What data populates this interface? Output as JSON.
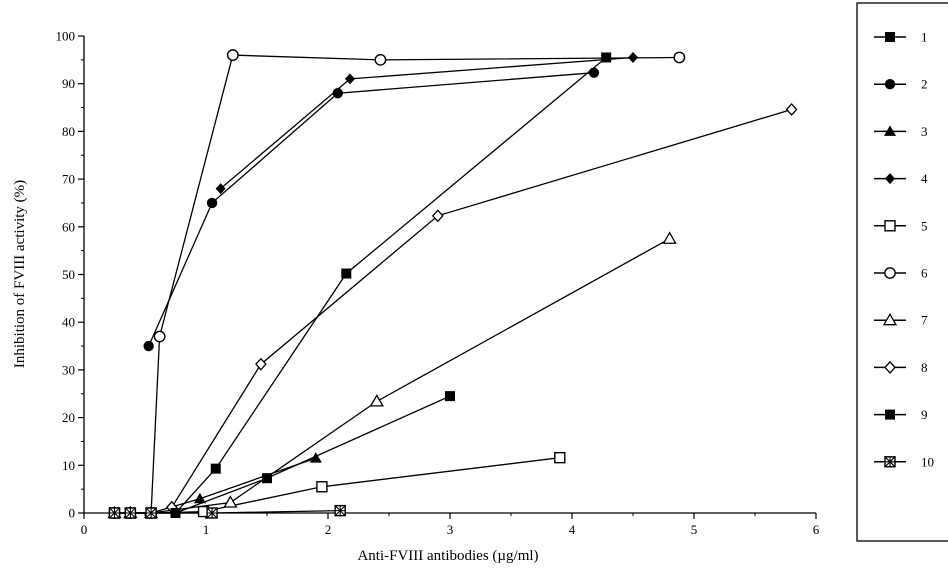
{
  "chart_data": {
    "type": "line",
    "title": "",
    "xlabel": "Anti-FVIII antibodies (µg/ml)",
    "ylabel": "Inhibition of FVIII activity (%)",
    "xlim": [
      0,
      6
    ],
    "ylim": [
      0,
      100
    ],
    "x_ticks": [
      "0",
      "1",
      "2",
      "3",
      "4",
      "5",
      "6"
    ],
    "y_ticks": [
      "0",
      "10",
      "20",
      "30",
      "40",
      "50",
      "60",
      "70",
      "80",
      "90",
      "100"
    ],
    "grid": false,
    "legend_position": "right",
    "series": [
      {
        "name": "1",
        "marker": "square-filled",
        "points": [
          [
            0.25,
            0
          ],
          [
            0.38,
            0
          ],
          [
            0.55,
            0
          ],
          [
            0.75,
            0
          ],
          [
            1.08,
            9.3
          ],
          [
            2.15,
            50.2
          ],
          [
            4.28,
            95.5
          ]
        ]
      },
      {
        "name": "2",
        "marker": "circle-filled",
        "points": [
          [
            0.53,
            35
          ],
          [
            1.05,
            65
          ],
          [
            2.08,
            88
          ],
          [
            4.18,
            92.3
          ]
        ]
      },
      {
        "name": "3",
        "marker": "triangle-filled",
        "points": [
          [
            0.25,
            0
          ],
          [
            0.38,
            0
          ],
          [
            0.55,
            0
          ],
          [
            0.95,
            3
          ],
          [
            1.9,
            11.5
          ]
        ]
      },
      {
        "name": "4",
        "marker": "diamond-filled",
        "points": [
          [
            1.12,
            68
          ],
          [
            2.18,
            91
          ],
          [
            4.5,
            95.5
          ]
        ]
      },
      {
        "name": "5",
        "marker": "square-open",
        "points": [
          [
            0.25,
            0
          ],
          [
            0.38,
            0
          ],
          [
            0.55,
            0
          ],
          [
            0.98,
            0.3
          ],
          [
            1.95,
            5.5
          ],
          [
            3.9,
            11.6
          ]
        ]
      },
      {
        "name": "6",
        "marker": "circle-open",
        "points": [
          [
            0.25,
            0
          ],
          [
            0.38,
            0
          ],
          [
            0.55,
            0
          ],
          [
            0.62,
            37
          ],
          [
            1.22,
            96
          ],
          [
            2.43,
            95
          ],
          [
            4.88,
            95.5
          ]
        ]
      },
      {
        "name": "7",
        "marker": "triangle-open",
        "points": [
          [
            0.25,
            0
          ],
          [
            0.38,
            0
          ],
          [
            0.55,
            0
          ],
          [
            1.2,
            2.2
          ],
          [
            2.4,
            23.4
          ],
          [
            4.8,
            57.5
          ]
        ]
      },
      {
        "name": "8",
        "marker": "diamond-open",
        "points": [
          [
            0.72,
            1.2
          ],
          [
            1.45,
            31.2
          ],
          [
            2.9,
            62.3
          ],
          [
            5.8,
            84.6
          ]
        ]
      },
      {
        "name": "9",
        "marker": "square-filled",
        "points": [
          [
            0.25,
            0
          ],
          [
            0.38,
            0
          ],
          [
            0.55,
            0
          ],
          [
            0.75,
            0
          ],
          [
            1.5,
            7.3
          ],
          [
            3.0,
            24.5
          ]
        ]
      },
      {
        "name": "10",
        "marker": "square-crossed",
        "points": [
          [
            0.25,
            0
          ],
          [
            0.38,
            0
          ],
          [
            0.55,
            0
          ],
          [
            1.05,
            0
          ],
          [
            2.1,
            0.5
          ]
        ]
      }
    ]
  }
}
